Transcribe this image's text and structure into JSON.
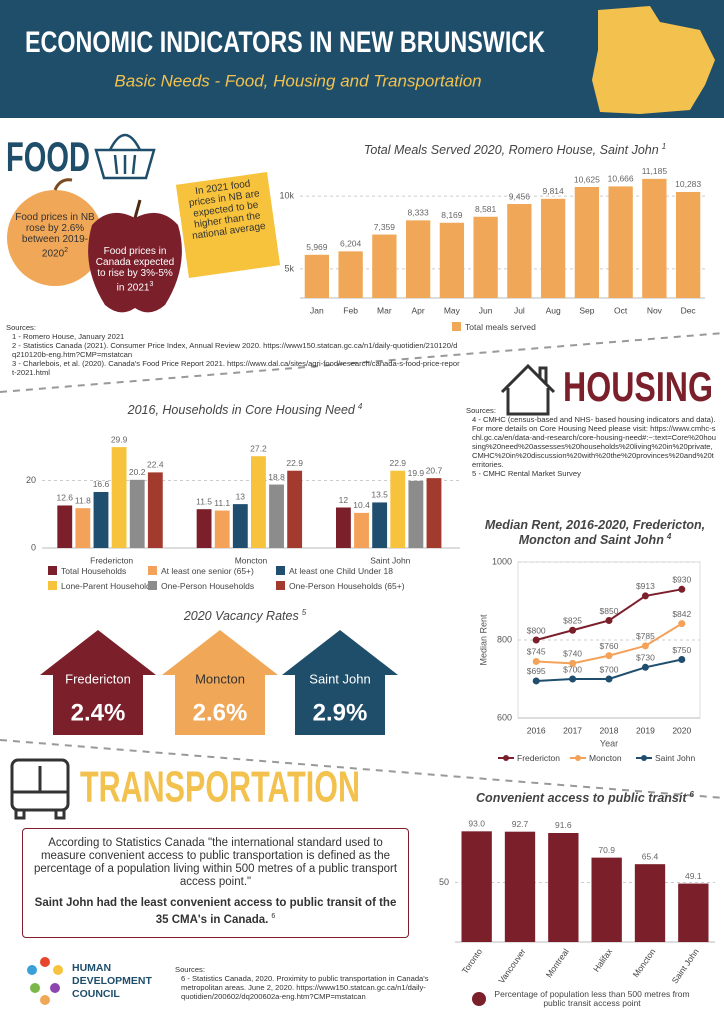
{
  "header": {
    "title": "ECONOMIC INDICATORS IN NEW BRUNSWICK",
    "subtitle": "Basic Needs - Food, Housing and Transportation"
  },
  "food": {
    "heading": "FOOD",
    "facts": [
      {
        "text": "Food prices in NB rose by 2.6% between 2019-2020",
        "note": "2"
      },
      {
        "text": "Food prices in Canada expected to rise by 3%-5% in 2021",
        "note": "3"
      },
      {
        "text": "In 2021 food prices in NB are expected to be higher than the national average"
      }
    ],
    "sources_label": "Sources:",
    "sources": [
      "1 - Romero House, January 2021",
      "2 - Statistics Canada (2021). Consumer Price Index, Annual Review 2020. https://www150.statcan.gc.ca/n1/daily-quotidien/210120/dq210120b-eng.htm?CMP=mstatcan",
      "3 - Charlebois, et al. (2020). Canada's Food Price Report 2021. https://www.dal.ca/sites/agri-food/research/canada-s-food-price-report-2021.html"
    ]
  },
  "housing": {
    "heading": "HOUSING",
    "sources_label": "Sources:",
    "sources": [
      "4 - CMHC (census-based and NHS- based housing indicators and data). For more details on Core Housing Need please visit: https://www.cmhc-schl.gc.ca/en/data-and-research/core-housing-need#:~:text=Core%20housing%20need%20assesses%20households%20living%20in%20private,CMHC%20in%20discussion%20with%20the%20provinces%20and%20territories.",
      "5 - CMHC Rental Market Survey"
    ],
    "vacancy": {
      "title": "2020 Vacancy Rates",
      "note": "5",
      "items": [
        {
          "city": "Fredericton",
          "rate": "2.4%"
        },
        {
          "city": "Moncton",
          "rate": "2.6%"
        },
        {
          "city": "Saint John",
          "rate": "2.9%"
        }
      ]
    }
  },
  "transportation": {
    "heading": "TRANSPORTATION",
    "quote": "According to Statistics Canada \"the international standard used to measure convenient access to public transportation is defined as the percentage of a population living within 500 metres of a public transport access point.\"",
    "finding": "Saint John had the least convenient access to public transit of the 35 CMA's in Canada.",
    "finding_note": "6",
    "sources_label": "Sources:",
    "sources": [
      "6 - Statistics Canada, 2020. Proximity to public transportation in Canada's metropolitan areas. June 2, 2020. https://www150.statcan.gc.ca/n1/daily-quotidien/200602/dq200602a-eng.htm?CMP=mstatcan"
    ]
  },
  "organization": {
    "name": "HUMAN DEVELOPMENT COUNCIL"
  },
  "chart_data": [
    {
      "type": "bar",
      "title": "Total Meals Served 2020, Romero House, Saint John",
      "title_note": "1",
      "categories": [
        "Jan",
        "Feb",
        "Mar",
        "Apr",
        "May",
        "Jun",
        "Jul",
        "Aug",
        "Sep",
        "Oct",
        "Nov",
        "Dec"
      ],
      "series": [
        {
          "name": "Total meals served",
          "color": "#f0a757",
          "values": [
            5969,
            6204,
            7359,
            8333,
            8169,
            8581,
            9456,
            9814,
            10625,
            10666,
            11185,
            10283
          ],
          "value_labels": [
            "5,969",
            "6,204",
            "7,359",
            "8,333",
            "8,169",
            "8,581",
            "9,456",
            "9,814",
            "10,625",
            "10,666",
            "11,185",
            "10,283"
          ]
        }
      ],
      "ylim": [
        3000,
        12000
      ],
      "yticks": [
        {
          "value": 5000,
          "label": "5k"
        },
        {
          "value": 10000,
          "label": "10k"
        }
      ],
      "grid": true
    },
    {
      "type": "bar",
      "title": "2016, Households in Core Housing Need",
      "title_note": "4",
      "categories": [
        "Fredericton",
        "Moncton",
        "Saint John"
      ],
      "series": [
        {
          "name": "Total Households",
          "color": "#7b1f2b",
          "values": [
            12.6,
            11.5,
            12
          ]
        },
        {
          "name": "At least one senior (65+)",
          "color": "#f4a259",
          "values": [
            11.8,
            11.1,
            10.4
          ]
        },
        {
          "name": "At least one Child Under 18",
          "color": "#1f4e6e",
          "values": [
            16.6,
            13,
            13.5
          ]
        },
        {
          "name": "Lone-Parent Households",
          "color": "#f7c33c",
          "values": [
            29.9,
            27.2,
            22.9
          ]
        },
        {
          "name": "One-Person Households",
          "color": "#8c8c8c",
          "values": [
            20.2,
            18.8,
            19.9
          ]
        },
        {
          "name": "One-Person Households (65+)",
          "color": "#a33a2e",
          "values": [
            22.4,
            22.9,
            20.7
          ]
        }
      ],
      "ylim": [
        0,
        32
      ],
      "yticks": [
        0,
        20
      ],
      "grid": true
    },
    {
      "type": "line",
      "title": "Median Rent, 2016-2020, Fredericton, Moncton and Saint John",
      "title_note": "4",
      "categories": [
        "2016",
        "2017",
        "2018",
        "2019",
        "2020"
      ],
      "xlabel": "Year",
      "ylabel": "Median Rent",
      "series": [
        {
          "name": "Fredericton",
          "color": "#7b1f2b",
          "values": [
            800,
            825,
            850,
            913,
            930
          ],
          "value_labels": [
            "$800",
            "$825",
            "$850",
            "$913",
            "$930"
          ]
        },
        {
          "name": "Moncton",
          "color": "#f4a259",
          "values": [
            745,
            740,
            760,
            785,
            842
          ],
          "value_labels": [
            "$745",
            "$740",
            "$760",
            "$785",
            "$842"
          ]
        },
        {
          "name": "Saint John",
          "color": "#1f4e6e",
          "values": [
            695,
            700,
            700,
            730,
            750
          ],
          "value_labels": [
            "$695",
            "$700",
            "$700",
            "$730",
            "$750"
          ]
        }
      ],
      "ylim": [
        600,
        1000
      ],
      "yticks": [
        600,
        800,
        1000
      ],
      "grid": true
    },
    {
      "type": "bar",
      "title": "Convenient access to public transit",
      "title_note": "6",
      "categories": [
        "Toronto",
        "Vancouver",
        "Montreal",
        "Halifax",
        "Moncton",
        "Saint John"
      ],
      "series": [
        {
          "name": "Percentage of population less than 500 metres from public transit access point",
          "color": "#7b1f2b",
          "values": [
            93.0,
            92.7,
            91.6,
            70.9,
            65.4,
            49.1
          ],
          "value_labels": [
            "93.0",
            "92.7",
            "91.6",
            "70.9",
            "65.4",
            "49.1"
          ]
        }
      ],
      "ylim": [
        0,
        100
      ],
      "yticks": [
        50
      ],
      "grid": true
    }
  ]
}
